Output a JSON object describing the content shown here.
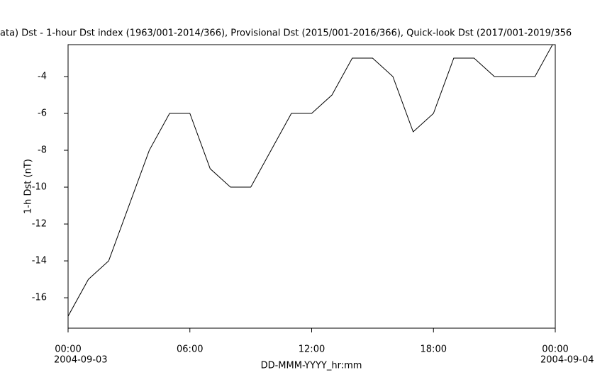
{
  "chart_data": {
    "type": "line",
    "title": "ata)  Dst - 1-hour Dst index (1963/001-2014/366), Provisional Dst (2015/001-2016/366), Quick-look Dst (2017/001-2019/356",
    "x_label": "DD-MMM-YYYY_hr:mm",
    "y_label": "1-h Dst (nT)",
    "start_date": "2004-09-03",
    "end_date": "2004-09-04",
    "x": [
      0,
      1,
      2,
      3,
      4,
      5,
      6,
      7,
      8,
      9,
      10,
      11,
      12,
      13,
      14,
      15,
      16,
      17,
      18,
      19,
      20,
      21,
      22,
      23,
      24
    ],
    "series": [
      {
        "color": "#000000",
        "values": [
          -17,
          -15,
          -14,
          -11,
          -8,
          -6,
          -6,
          -9,
          -10,
          -10,
          -8,
          -6,
          -6,
          -5,
          -3,
          -3,
          -4,
          -7,
          -6,
          -3,
          -3,
          -4,
          -4,
          -4,
          -2
        ]
      }
    ],
    "xlim": [
      0,
      24
    ],
    "xticks": [
      {
        "value": 0,
        "label": "00:00"
      },
      {
        "value": 6,
        "label": "06:00"
      },
      {
        "value": 12,
        "label": "12:00"
      },
      {
        "value": 18,
        "label": "18:00"
      },
      {
        "value": 24,
        "label": "00:00"
      }
    ],
    "ylim": [
      -17.65,
      -2.27
    ],
    "yticks": [
      -16,
      -14,
      -12,
      -10,
      -8,
      -6,
      -4
    ],
    "grid": false
  }
}
